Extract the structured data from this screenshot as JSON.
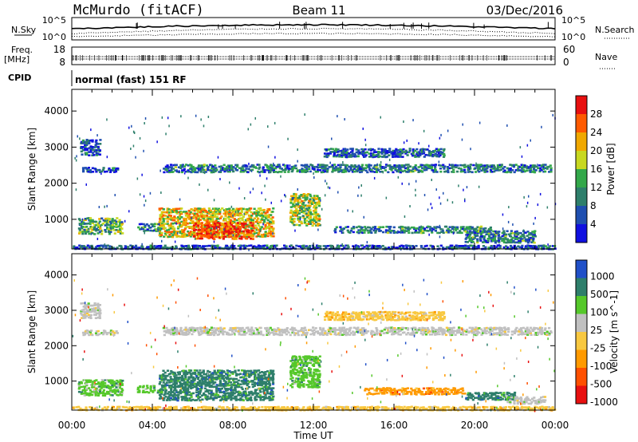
{
  "header": {
    "station": "McMurdo (fitACF)",
    "beam": "Beam 11",
    "date": "03/Dec/2016"
  },
  "top_panels": {
    "nsky_label": "N.Sky",
    "nsearch_label": "N.Search",
    "nsky_ticks": [
      "10^5",
      "10^0"
    ],
    "nsearch_ticks": [
      "10^5",
      "10^0"
    ],
    "freq_label_1": "Freq.",
    "freq_label_2": "[MHz]",
    "freq_ticks": [
      "18",
      "8"
    ],
    "nave_label": "Nave",
    "nave_ticks": [
      "60",
      "0"
    ],
    "cpid_label": "CPID",
    "cpid_text": "normal (fast) 151 RF"
  },
  "chart_data": [
    {
      "type": "heatmap",
      "name": "power",
      "ylabel": "Slant Range [km]",
      "yticks": [
        1000,
        2000,
        3000,
        4000
      ],
      "ylim": [
        180,
        4600
      ],
      "xlabel": "Time UT",
      "xticks": [
        "00:00",
        "04:00",
        "08:00",
        "12:00",
        "16:00",
        "20:00",
        "00:00"
      ],
      "xlim_hours": [
        0,
        24
      ],
      "colorbar_label": "Power [dB]",
      "colorbar_ticks": [
        "4",
        "8",
        "12",
        "16",
        "20",
        "24",
        "28"
      ],
      "colorbar_colors": [
        "#1010e0",
        "#1f4fb0",
        "#2e7f6b",
        "#33a84a",
        "#c8d820",
        "#f0a800",
        "#ff5a00",
        "#e81010"
      ],
      "colorbar_range": [
        0,
        30
      ],
      "regions": [
        {
          "t0": 0.3,
          "t1": 2.5,
          "r0": 620,
          "r1": 1080,
          "level": 0.42
        },
        {
          "t0": 0.5,
          "t1": 2.3,
          "r0": 2330,
          "r1": 2480,
          "level": 0.2
        },
        {
          "t0": 0.4,
          "t1": 1.4,
          "r0": 2800,
          "r1": 3250,
          "level": 0.18
        },
        {
          "t0": 3.2,
          "t1": 4.5,
          "r0": 700,
          "r1": 920,
          "level": 0.3
        },
        {
          "t0": 4.3,
          "t1": 10.0,
          "r0": 540,
          "r1": 1350,
          "level": 0.62
        },
        {
          "t0": 6.0,
          "t1": 9.0,
          "r0": 480,
          "r1": 950,
          "level": 0.85
        },
        {
          "t0": 10.8,
          "t1": 12.3,
          "r0": 850,
          "r1": 1750,
          "level": 0.55
        },
        {
          "t0": 13.0,
          "t1": 20.8,
          "r0": 650,
          "r1": 850,
          "level": 0.3
        },
        {
          "t0": 19.5,
          "t1": 23.0,
          "r0": 380,
          "r1": 720,
          "level": 0.3
        },
        {
          "t0": 4.5,
          "t1": 23.8,
          "r0": 2330,
          "r1": 2560,
          "level": 0.28
        },
        {
          "t0": 12.5,
          "t1": 18.5,
          "r0": 2750,
          "r1": 3000,
          "level": 0.22
        },
        {
          "t0": 0.0,
          "t1": 24.0,
          "r0": 200,
          "r1": 320,
          "level": 0.18
        }
      ]
    },
    {
      "type": "heatmap",
      "name": "velocity",
      "ylabel": "Slant Range [km]",
      "yticks": [
        1000,
        2000,
        3000,
        4000
      ],
      "ylim": [
        180,
        4600
      ],
      "xlabel": "Time UT",
      "xticks": [
        "00:00",
        "04:00",
        "08:00",
        "12:00",
        "16:00",
        "20:00",
        "00:00"
      ],
      "xlim_hours": [
        0,
        24
      ],
      "colorbar_label": "Velocity [m s^-1]",
      "colorbar_ticks": [
        "1000",
        "500",
        "100",
        "25",
        "-25",
        "-100",
        "-500",
        "-1000"
      ],
      "colorbar_colors": [
        "#2050c8",
        "#2e7f6b",
        "#55c82a",
        "#c0c0c0",
        "#f8c840",
        "#ff9a00",
        "#ff5000",
        "#e81010"
      ],
      "regions": [
        {
          "t0": 0.3,
          "t1": 2.5,
          "r0": 620,
          "r1": 1080,
          "cls": 2
        },
        {
          "t0": 0.5,
          "t1": 2.3,
          "r0": 2330,
          "r1": 2480,
          "cls": 3
        },
        {
          "t0": 0.4,
          "t1": 1.4,
          "r0": 2800,
          "r1": 3250,
          "cls": 3
        },
        {
          "t0": 3.2,
          "t1": 4.5,
          "r0": 700,
          "r1": 920,
          "cls": 2
        },
        {
          "t0": 4.3,
          "t1": 10.0,
          "r0": 480,
          "r1": 1350,
          "cls": 1
        },
        {
          "t0": 10.8,
          "t1": 12.3,
          "r0": 850,
          "r1": 1750,
          "cls": 2
        },
        {
          "t0": 14.5,
          "t1": 19.5,
          "r0": 650,
          "r1": 850,
          "cls": 5
        },
        {
          "t0": 19.5,
          "t1": 22.0,
          "r0": 500,
          "r1": 720,
          "cls": 1
        },
        {
          "t0": 21.5,
          "t1": 23.5,
          "r0": 380,
          "r1": 600,
          "cls": 3
        },
        {
          "t0": 4.5,
          "t1": 23.8,
          "r0": 2330,
          "r1": 2560,
          "cls": 3
        },
        {
          "t0": 12.5,
          "t1": 18.5,
          "r0": 2750,
          "r1": 3000,
          "cls": 4
        },
        {
          "t0": 0.0,
          "t1": 24.0,
          "r0": 200,
          "r1": 320,
          "cls": 4
        }
      ]
    }
  ]
}
